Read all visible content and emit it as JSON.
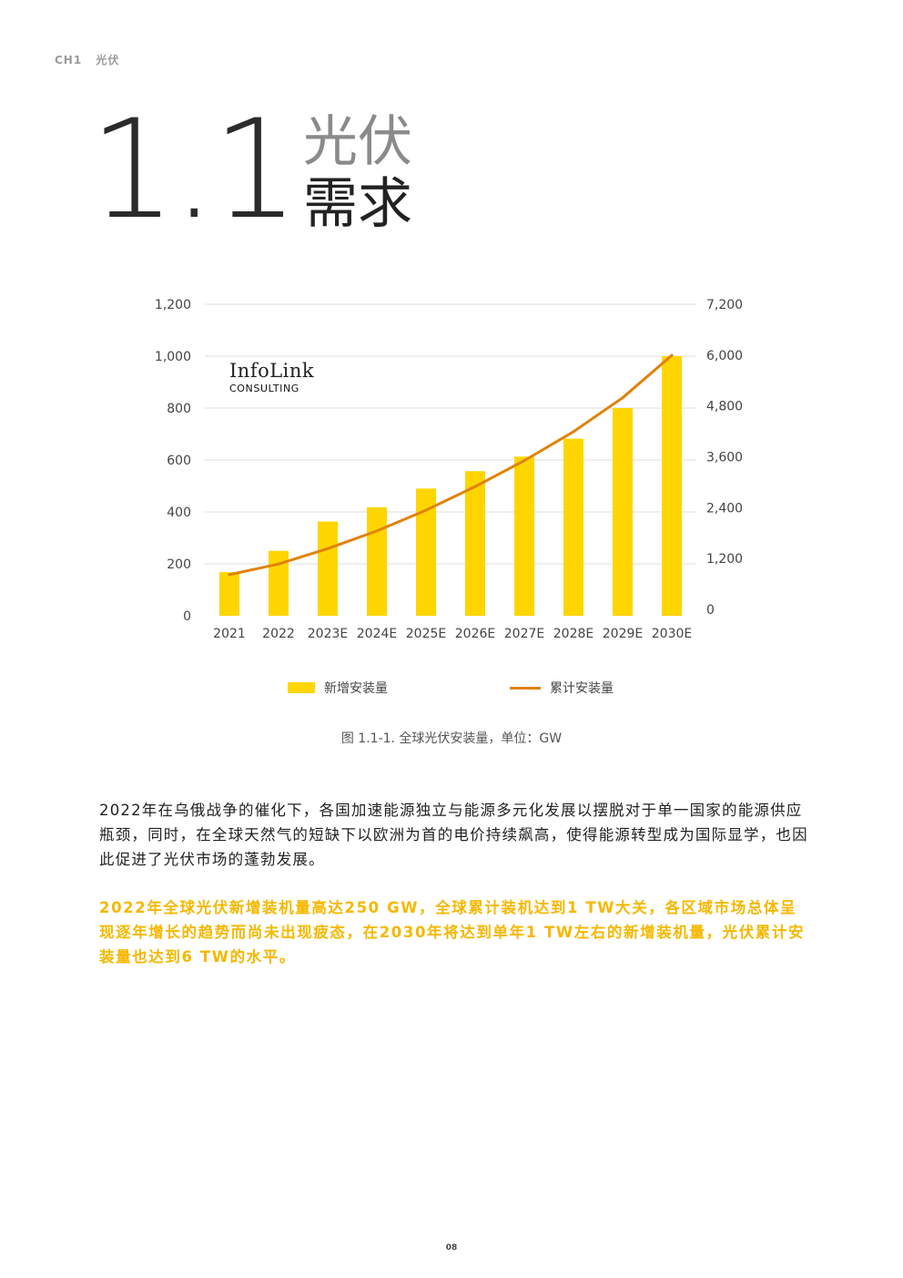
{
  "header": {
    "chapter": "CH1",
    "chapter_title": "光伏"
  },
  "section": {
    "number": "1.1",
    "title_line1": "光伏",
    "title_line2": "需求"
  },
  "logo": {
    "main": "InfoLink",
    "sub": "CONSULTING"
  },
  "chart_data": {
    "type": "bar",
    "categories": [
      "2021",
      "2022",
      "2023E",
      "2024E",
      "2025E",
      "2026E",
      "2027E",
      "2028E",
      "2029E",
      "2030E"
    ],
    "series": [
      {
        "name": "新增安装量",
        "type": "bar",
        "axis": "left",
        "values": [
          168,
          250,
          363,
          418,
          490,
          557,
          613,
          682,
          800,
          1000
        ]
      },
      {
        "name": "累计安装量",
        "type": "line",
        "axis": "right",
        "values": [
          820,
          1070,
          1433,
          1851,
          2341,
          2898,
          3511,
          4193,
          4993,
          5993
        ]
      }
    ],
    "ylabel_left": "新增安装量",
    "ylabel_right": "累计安装量",
    "ylim_left": [
      0,
      1200
    ],
    "ylim_right": [
      0,
      7200
    ],
    "yticks_left": [
      "0",
      "200",
      "400",
      "600",
      "800",
      "1,000",
      "1,200"
    ],
    "yticks_right": [
      "0",
      "1,200",
      "2,400",
      "3,600",
      "4,800",
      "6,000",
      "7,200"
    ],
    "colors": {
      "bar": "#FFD500",
      "line": "#E0820A",
      "grid": "#dddddd"
    },
    "grid": true,
    "legend_position": "bottom"
  },
  "caption": "图 1.1-1. 全球光伏安装量，单位：GW",
  "paragraph1": "2022年在乌俄战争的催化下，各国加速能源独立与能源多元化发展以摆脱对于单一国家的能源供应瓶颈，同时，在全球天然气的短缺下以欧洲为首的电价持续飙高，使得能源转型成为国际显学，也因此促进了光伏市场的蓬勃发展。",
  "paragraph2": "2022年全球光伏新增装机量高达250 GW，全球累计装机达到1 TW大关，各区域市场总体呈现逐年增长的趋势而尚未出现疲态，在2030年将达到单年1 TW左右的新增装机量，光伏累计安装量也达到6 TW的水平。",
  "page_number": "08"
}
